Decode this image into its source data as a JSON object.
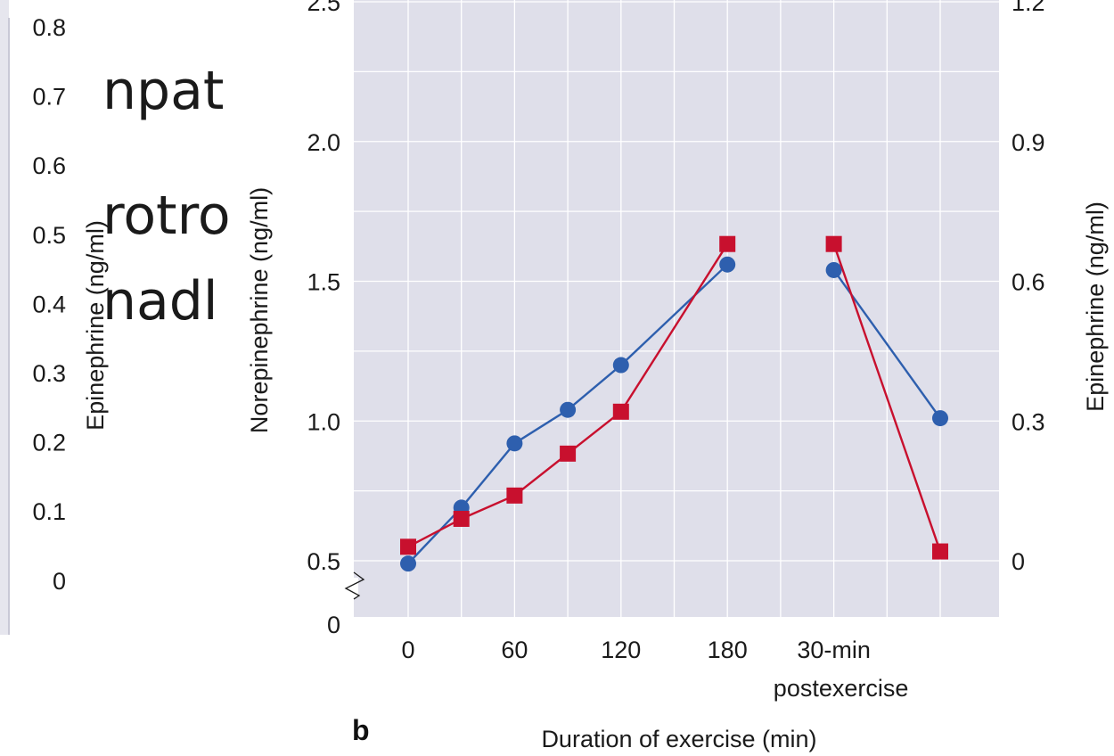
{
  "colors": {
    "plot_bg": "#dfdfea",
    "grid": "#ffffff",
    "norepinephrine": "#2e5fae",
    "epinephrine": "#c8102e",
    "text": "#1a1a1a"
  },
  "background_slide_text": {
    "line1": "npat",
    "line2": "rotro",
    "line3": "nadl"
  },
  "left_partial_panel": {
    "ylabel": "Epinephrine (ng/ml)",
    "yticks": [
      "0.8",
      "0.7",
      "0.6",
      "0.5",
      "0.4",
      "0.3",
      "0.2",
      "0.1",
      "0"
    ]
  },
  "chart_data": {
    "type": "line",
    "panel_label": "b",
    "xlabel": "Duration of exercise (min)",
    "ylabel_left": "Norepinephrine (ng/ml)",
    "ylabel_right": "Epinephrine (ng/ml)",
    "x_tick_labels": [
      {
        "x": 0,
        "lines": [
          "0"
        ]
      },
      {
        "x": 60,
        "lines": [
          "60"
        ]
      },
      {
        "x": 120,
        "lines": [
          "120"
        ]
      },
      {
        "x": 180,
        "lines": [
          "180"
        ]
      },
      {
        "x": 240,
        "lines": [
          "30-min",
          "postexercise"
        ]
      }
    ],
    "y_left_ticks": [
      {
        "value": 0.5,
        "label": "0.5"
      },
      {
        "value": 1.0,
        "label": "1.0"
      },
      {
        "value": 1.5,
        "label": "1.5"
      },
      {
        "value": 2.0,
        "label": "2.0"
      },
      {
        "value": 2.5,
        "label": "2.5"
      }
    ],
    "y_left_zero_label": "0",
    "y_left_break": true,
    "y_right_ticks": [
      {
        "value": 0,
        "label": "0"
      },
      {
        "value": 0.3,
        "label": "0.3"
      },
      {
        "value": 0.6,
        "label": "0.6"
      },
      {
        "value": 0.9,
        "label": "0.9"
      },
      {
        "value": 1.2,
        "label": "1.2"
      }
    ],
    "ylim_left": [
      0.5,
      2.5
    ],
    "ylim_right": [
      0,
      1.2
    ],
    "grid": true,
    "series": [
      {
        "name": "Norepinephrine",
        "axis": "left",
        "marker": "circle",
        "segments": [
          [
            {
              "x": 0,
              "y": 0.49
            },
            {
              "x": 30,
              "y": 0.69
            },
            {
              "x": 60,
              "y": 0.92
            },
            {
              "x": 90,
              "y": 1.04
            },
            {
              "x": 120,
              "y": 1.2
            },
            {
              "x": 180,
              "y": 1.56
            }
          ],
          [
            {
              "x": 240,
              "y": 1.54
            },
            {
              "x": 300,
              "y": 1.01
            }
          ]
        ]
      },
      {
        "name": "Epinephrine",
        "axis": "right",
        "marker": "square",
        "segments": [
          [
            {
              "x": 0,
              "y": 0.03
            },
            {
              "x": 30,
              "y": 0.09
            },
            {
              "x": 60,
              "y": 0.14
            },
            {
              "x": 90,
              "y": 0.23
            },
            {
              "x": 120,
              "y": 0.32
            },
            {
              "x": 180,
              "y": 0.68
            }
          ],
          [
            {
              "x": 240,
              "y": 0.68
            },
            {
              "x": 300,
              "y": 0.02
            }
          ]
        ]
      }
    ]
  }
}
